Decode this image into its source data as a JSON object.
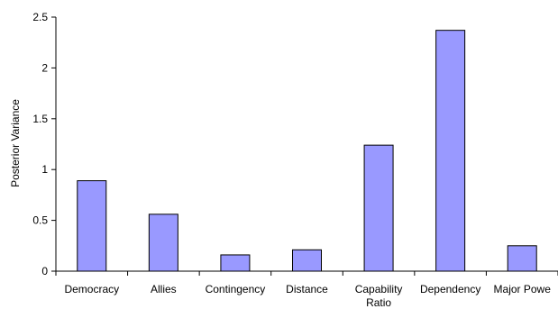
{
  "chart_data": {
    "type": "bar",
    "categories": [
      "Democracy",
      "Allies",
      "Contingency",
      "Distance",
      "Capability Ratio",
      "Dependency",
      "Major Powe"
    ],
    "category_lines": [
      [
        "Democracy"
      ],
      [
        "Allies"
      ],
      [
        "Contingency"
      ],
      [
        "Distance"
      ],
      [
        "Capability",
        "Ratio"
      ],
      [
        "Dependency"
      ],
      [
        "Major Powe"
      ]
    ],
    "values": [
      0.89,
      0.56,
      0.16,
      0.21,
      1.24,
      2.37,
      0.25
    ],
    "ylabel": "Posterior Variance",
    "xlabel": "",
    "ylim": [
      0,
      2.5
    ],
    "yticks": [
      0,
      0.5,
      1,
      1.5,
      2,
      2.5
    ],
    "ytick_labels": [
      "0",
      "0.5",
      "1",
      "1.5",
      "2",
      "2.5"
    ],
    "grid": false,
    "legend": "none",
    "bar_color": "#9999ff",
    "bar_stroke": "#000000"
  }
}
